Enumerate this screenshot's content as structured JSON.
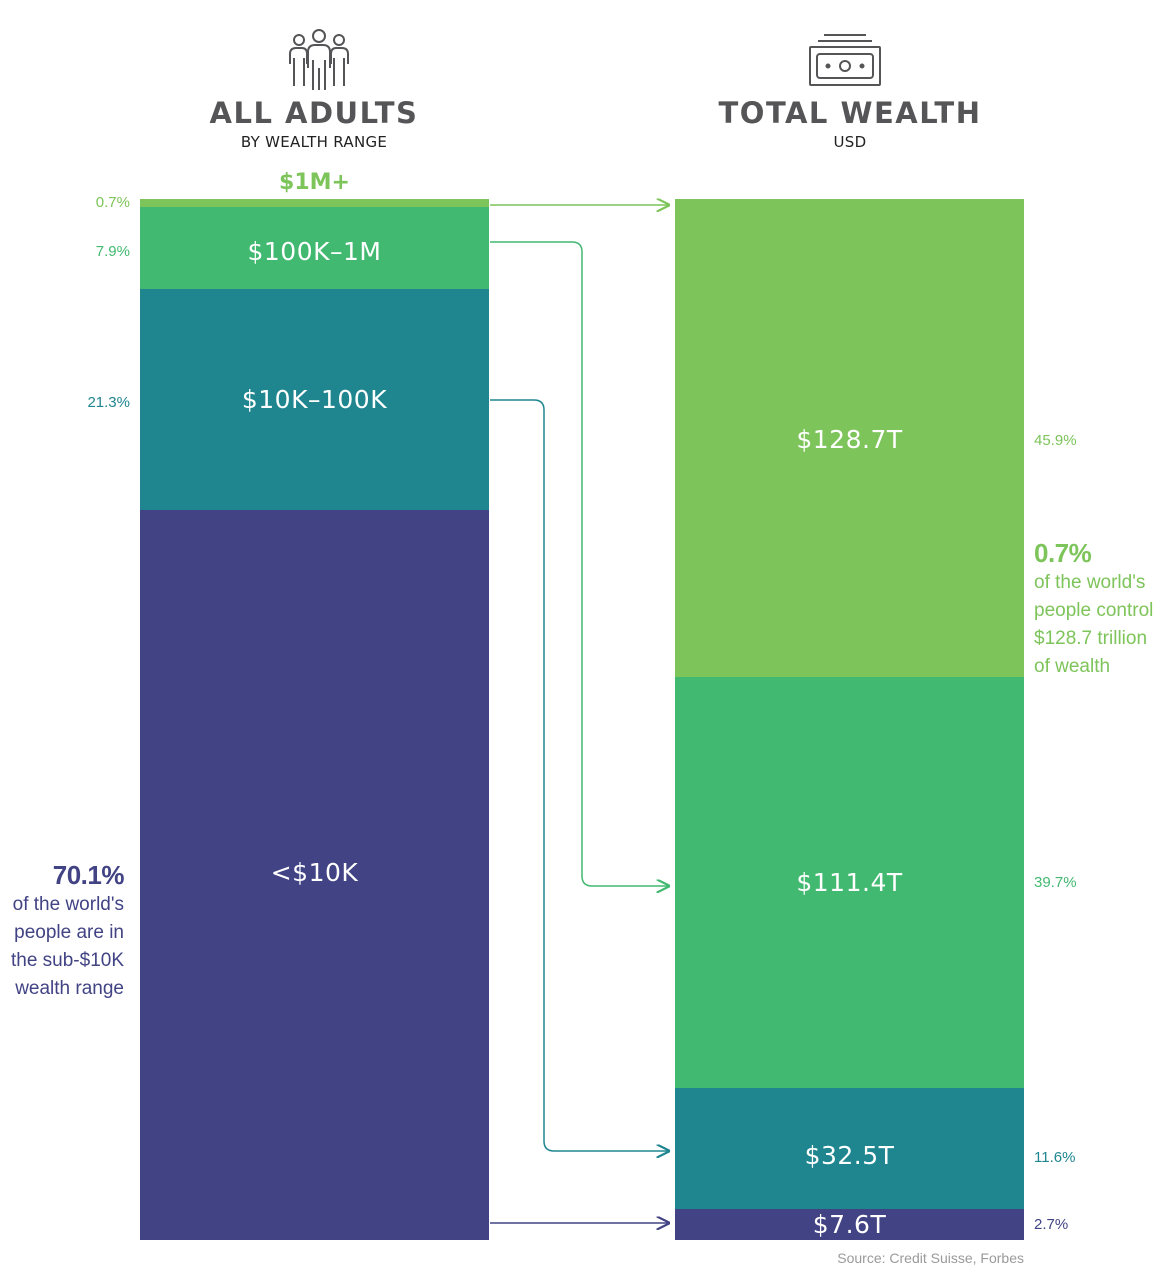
{
  "left_header": {
    "title": "ALL ADULTS",
    "subtitle": "BY WEALTH RANGE",
    "icon": "people-icon"
  },
  "right_header": {
    "title": "TOTAL WEALTH",
    "subtitle": "USD",
    "icon": "banknote-icon"
  },
  "colors": {
    "top": "#7dc45a",
    "upper": "#42b970",
    "middle": "#1f8690",
    "lower": "#414384",
    "source": "#9a9a9a"
  },
  "chart_data": {
    "type": "bar",
    "stacked": true,
    "categories": [
      "$1M+",
      "$100K–1M",
      "$10K–100K",
      "<$10K"
    ],
    "series": [
      {
        "name": "ALL ADULTS",
        "values": [
          0.7,
          7.9,
          21.3,
          70.1
        ],
        "value_labels": [
          "0.7%",
          "7.9%",
          "21.3%",
          ""
        ]
      },
      {
        "name": "TOTAL WEALTH",
        "values": [
          128.7,
          111.4,
          32.5,
          7.6
        ],
        "value_labels": [
          "$128.7T",
          "$111.4T",
          "$32.5T",
          "$7.6T"
        ],
        "share_labels": [
          "45.9%",
          "39.7%",
          "11.6%",
          "2.7%"
        ]
      }
    ]
  },
  "notes": {
    "left": {
      "number": "70.1%",
      "lines": [
        "of the world's",
        "people are in",
        "the sub-$10K",
        "wealth range"
      ]
    },
    "right": {
      "number": "0.7%",
      "lines": [
        "of the world's",
        "people control",
        "$128.7 trillion",
        "of wealth"
      ]
    }
  },
  "source": "Source: Credit Suisse, Forbes"
}
